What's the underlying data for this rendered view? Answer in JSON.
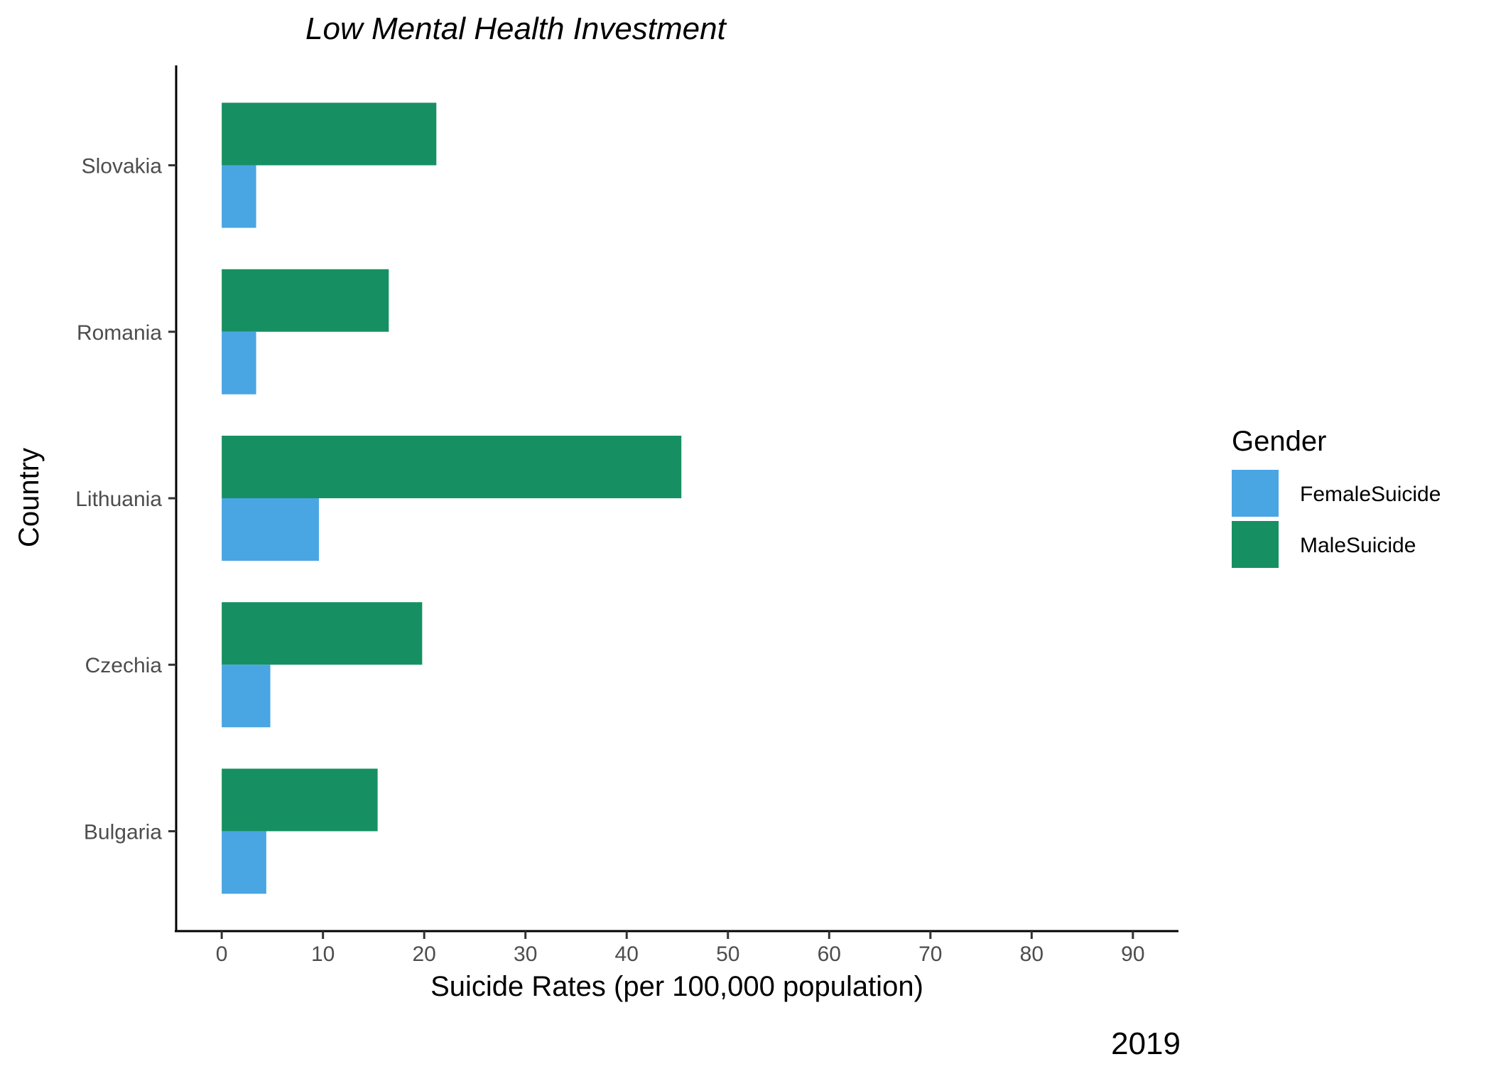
{
  "chart_data": {
    "type": "bar",
    "orientation": "horizontal",
    "title": "Low Mental Health Investment",
    "caption": "2019",
    "xlabel": "Suicide Rates (per 100,000 population)",
    "ylabel": "Country",
    "categories": [
      "Bulgaria",
      "Czechia",
      "Lithuania",
      "Romania",
      "Slovakia"
    ],
    "series": [
      {
        "name": "FemaleSuicide",
        "values": [
          4.4,
          4.8,
          9.6,
          3.4,
          3.4
        ],
        "color": "#4aa5e3"
      },
      {
        "name": "MaleSuicide",
        "values": [
          15.4,
          19.8,
          45.4,
          16.5,
          21.2
        ],
        "color": "#169062"
      }
    ],
    "xlim": [
      -4.5,
      94.5
    ],
    "xticks": [
      0,
      10,
      20,
      30,
      40,
      50,
      60,
      70,
      80,
      90
    ],
    "grid": false,
    "legend": {
      "title": "Gender",
      "position": "right"
    }
  }
}
